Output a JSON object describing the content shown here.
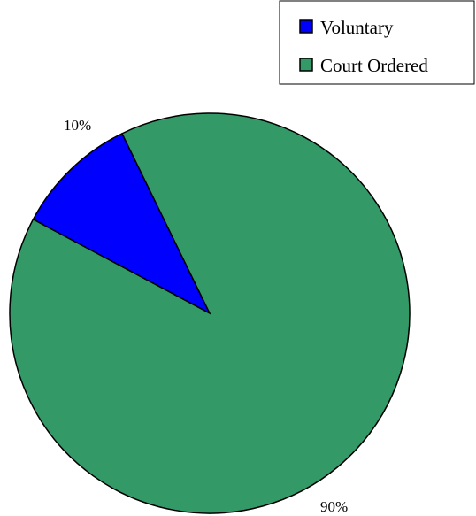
{
  "chart_data": {
    "type": "pie",
    "categories": [
      "Voluntary",
      "Court Ordered"
    ],
    "values": [
      10,
      90
    ],
    "labels": [
      "10%",
      "90%"
    ],
    "colors": [
      "#0000ff",
      "#339966"
    ],
    "legend": {
      "placement": "top-right",
      "entries": [
        "Voluntary",
        "Court Ordered"
      ]
    }
  }
}
